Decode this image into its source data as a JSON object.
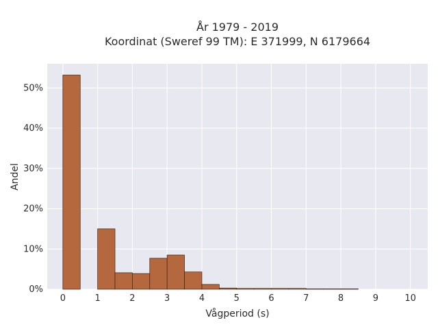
{
  "chart_data": {
    "type": "bar",
    "title_line1": "År 1979 - 2019",
    "title_line2": "Koordinat (Sweref 99 TM): E 371999, N 6179664",
    "xlabel": "Vågperiod (s)",
    "ylabel": "Andel",
    "xlim": [
      -0.45,
      10.5
    ],
    "ylim": [
      0,
      0.56
    ],
    "xticks": [
      "0",
      "1",
      "2",
      "3",
      "4",
      "5",
      "6",
      "7",
      "8",
      "9",
      "10"
    ],
    "yticks": [
      "0%",
      "10%",
      "20%",
      "30%",
      "40%",
      "50%"
    ],
    "bin_width": 0.5,
    "bins": [
      {
        "x0": 0.0,
        "value": 0.532
      },
      {
        "x0": 0.5,
        "value": 0.0
      },
      {
        "x0": 1.0,
        "value": 0.15
      },
      {
        "x0": 1.5,
        "value": 0.041
      },
      {
        "x0": 2.0,
        "value": 0.039
      },
      {
        "x0": 2.5,
        "value": 0.077
      },
      {
        "x0": 3.0,
        "value": 0.085
      },
      {
        "x0": 3.5,
        "value": 0.043
      },
      {
        "x0": 4.0,
        "value": 0.012
      },
      {
        "x0": 4.5,
        "value": 0.003
      },
      {
        "x0": 5.0,
        "value": 0.002
      },
      {
        "x0": 5.5,
        "value": 0.002
      },
      {
        "x0": 6.0,
        "value": 0.002
      },
      {
        "x0": 6.5,
        "value": 0.002
      },
      {
        "x0": 7.0,
        "value": 0.001
      },
      {
        "x0": 7.5,
        "value": 0.001
      },
      {
        "x0": 8.0,
        "value": 0.001
      }
    ],
    "grid": true,
    "colors": {
      "bar_fill": "#b5683d",
      "bar_stroke": "#3a2418",
      "plot_bg": "#e8e8f0",
      "grid": "#ffffff"
    }
  }
}
